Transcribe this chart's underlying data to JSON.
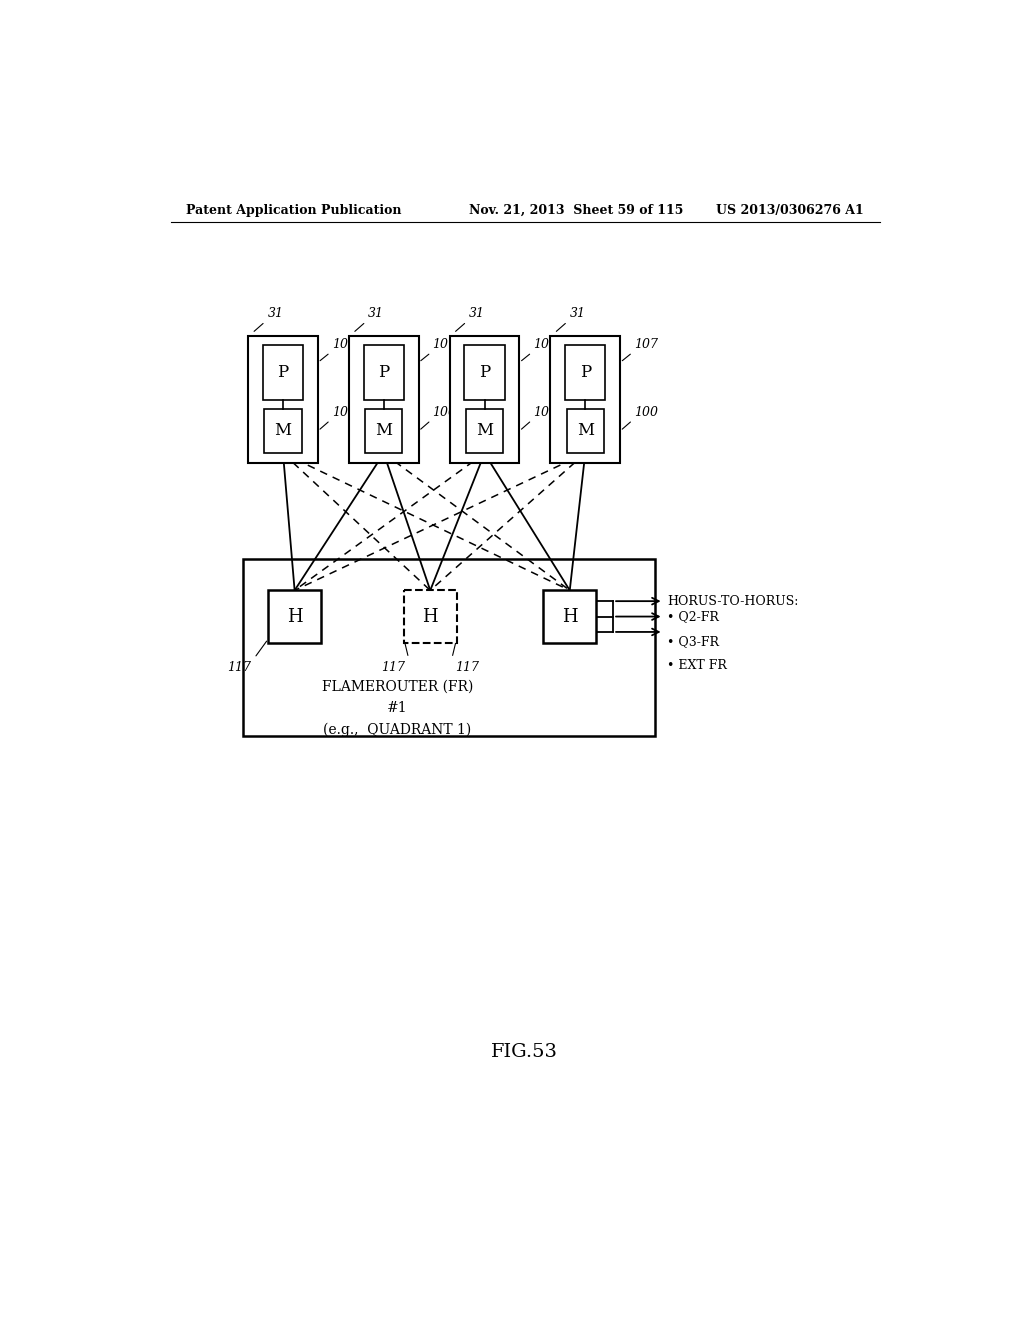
{
  "bg_color": "#ffffff",
  "header_left": "Patent Application Publication",
  "header_mid": "Nov. 21, 2013  Sheet 59 of 115",
  "header_right": "US 2013/0306276 A1",
  "fig_label": "FIG.53",
  "fr_label1": "FLAMEROUTER (FR)",
  "fr_label2": "#1",
  "fr_label3": "(e.g.,  QUADRANT 1)",
  "arrows_label": "HORUS-TO-HORUS:",
  "arrow_items": [
    "• Q2-FR",
    "• Q3-FR",
    "• EXT FR"
  ]
}
